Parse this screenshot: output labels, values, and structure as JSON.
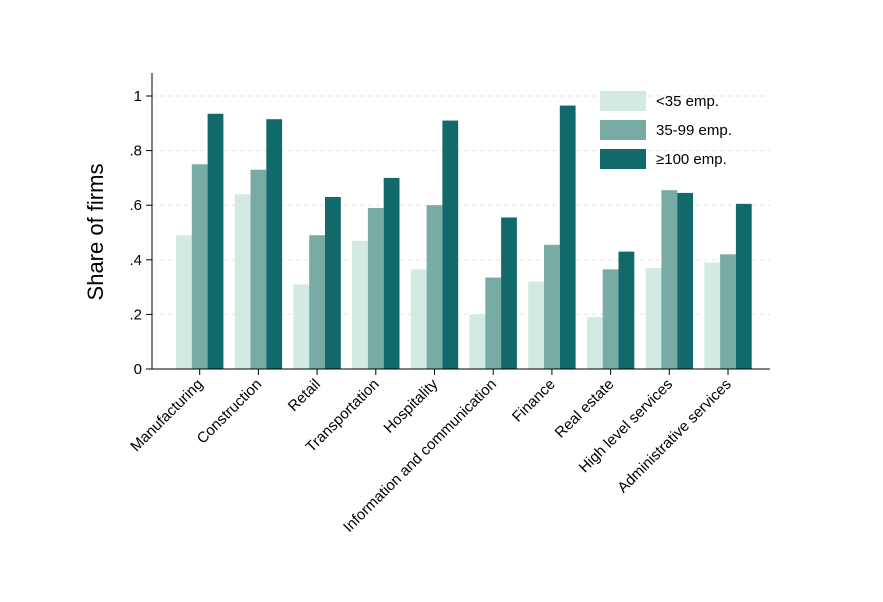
{
  "chart_data": {
    "type": "bar",
    "ylabel": "Share of firms",
    "ylim": [
      0,
      1.05
    ],
    "yticks": [
      0,
      0.2,
      0.4,
      0.6,
      0.8,
      1
    ],
    "ytick_labels": [
      "0",
      ".2",
      ".4",
      ".6",
      ".8",
      "1"
    ],
    "grid": true,
    "legend_position": "top-right",
    "categories": [
      "Manufacturing",
      "Construction",
      "Retail",
      "Transportation",
      "Hospitality",
      "Information and communication",
      "Finance",
      "Real estate",
      "High level services",
      "Administrative services"
    ],
    "series": [
      {
        "name": "<35 emp.",
        "color": "#d3e9e4",
        "values": [
          0.49,
          0.64,
          0.31,
          0.47,
          0.365,
          0.2,
          0.32,
          0.19,
          0.37,
          0.39
        ]
      },
      {
        "name": "35-99 emp.",
        "color": "#79aba5",
        "values": [
          0.75,
          0.73,
          0.49,
          0.59,
          0.6,
          0.335,
          0.455,
          0.365,
          0.655,
          0.42
        ]
      },
      {
        "name": "≥100 emp.",
        "color": "#12696a",
        "values": [
          0.935,
          0.915,
          0.63,
          0.7,
          0.91,
          0.555,
          0.965,
          0.43,
          0.645,
          0.605
        ]
      }
    ]
  }
}
